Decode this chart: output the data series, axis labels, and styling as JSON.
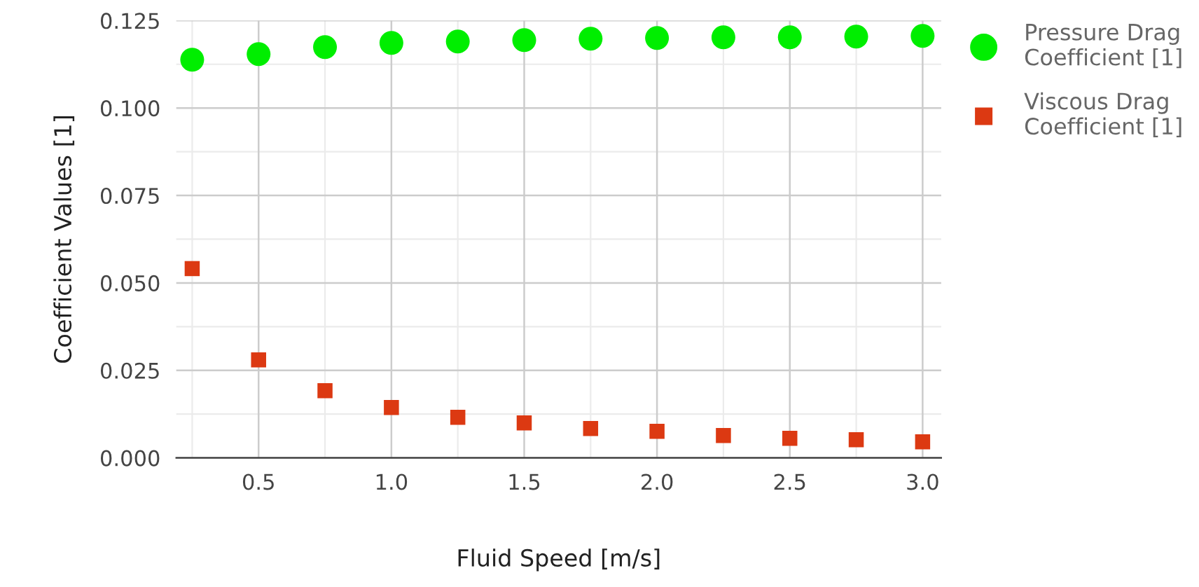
{
  "chart_data": {
    "type": "scatter",
    "xlabel": "Fluid Speed [m/s]",
    "ylabel": "Coefficient Values [1]",
    "x": [
      0.25,
      0.5,
      0.75,
      1.0,
      1.25,
      1.5,
      1.75,
      2.0,
      2.25,
      2.5,
      2.75,
      3.0
    ],
    "series": [
      {
        "name": "Pressure Drag Coefficient [1]",
        "color": "#00ee00",
        "marker": "circle",
        "values": [
          0.1138,
          0.1154,
          0.1174,
          0.1186,
          0.119,
          0.1194,
          0.1198,
          0.12,
          0.1202,
          0.1202,
          0.1204,
          0.1206
        ]
      },
      {
        "name": "Viscous Drag Coefficient [1]",
        "color": "#dc3912",
        "marker": "square",
        "values": [
          0.0541,
          0.028,
          0.0192,
          0.0144,
          0.0116,
          0.01,
          0.0084,
          0.0076,
          0.0064,
          0.0056,
          0.0052,
          0.0046
        ]
      }
    ],
    "xlim": [
      0.19,
      3.07
    ],
    "ylim": [
      0,
      0.125
    ],
    "xticks": [
      {
        "value": 0.5,
        "label": "0.5"
      },
      {
        "value": 1.0,
        "label": "1.0"
      },
      {
        "value": 1.5,
        "label": "1.5"
      },
      {
        "value": 2.0,
        "label": "2.0"
      },
      {
        "value": 2.5,
        "label": "2.5"
      },
      {
        "value": 3.0,
        "label": "3.0"
      }
    ],
    "yticks": [
      {
        "value": 0,
        "label": "0.000"
      },
      {
        "value": 0.025,
        "label": "0.025"
      },
      {
        "value": 0.05,
        "label": "0.050"
      },
      {
        "value": 0.075,
        "label": "0.075"
      },
      {
        "value": 0.1,
        "label": "0.100"
      },
      {
        "value": 0.125,
        "label": "0.125"
      }
    ],
    "grid": true,
    "legend": "right"
  }
}
